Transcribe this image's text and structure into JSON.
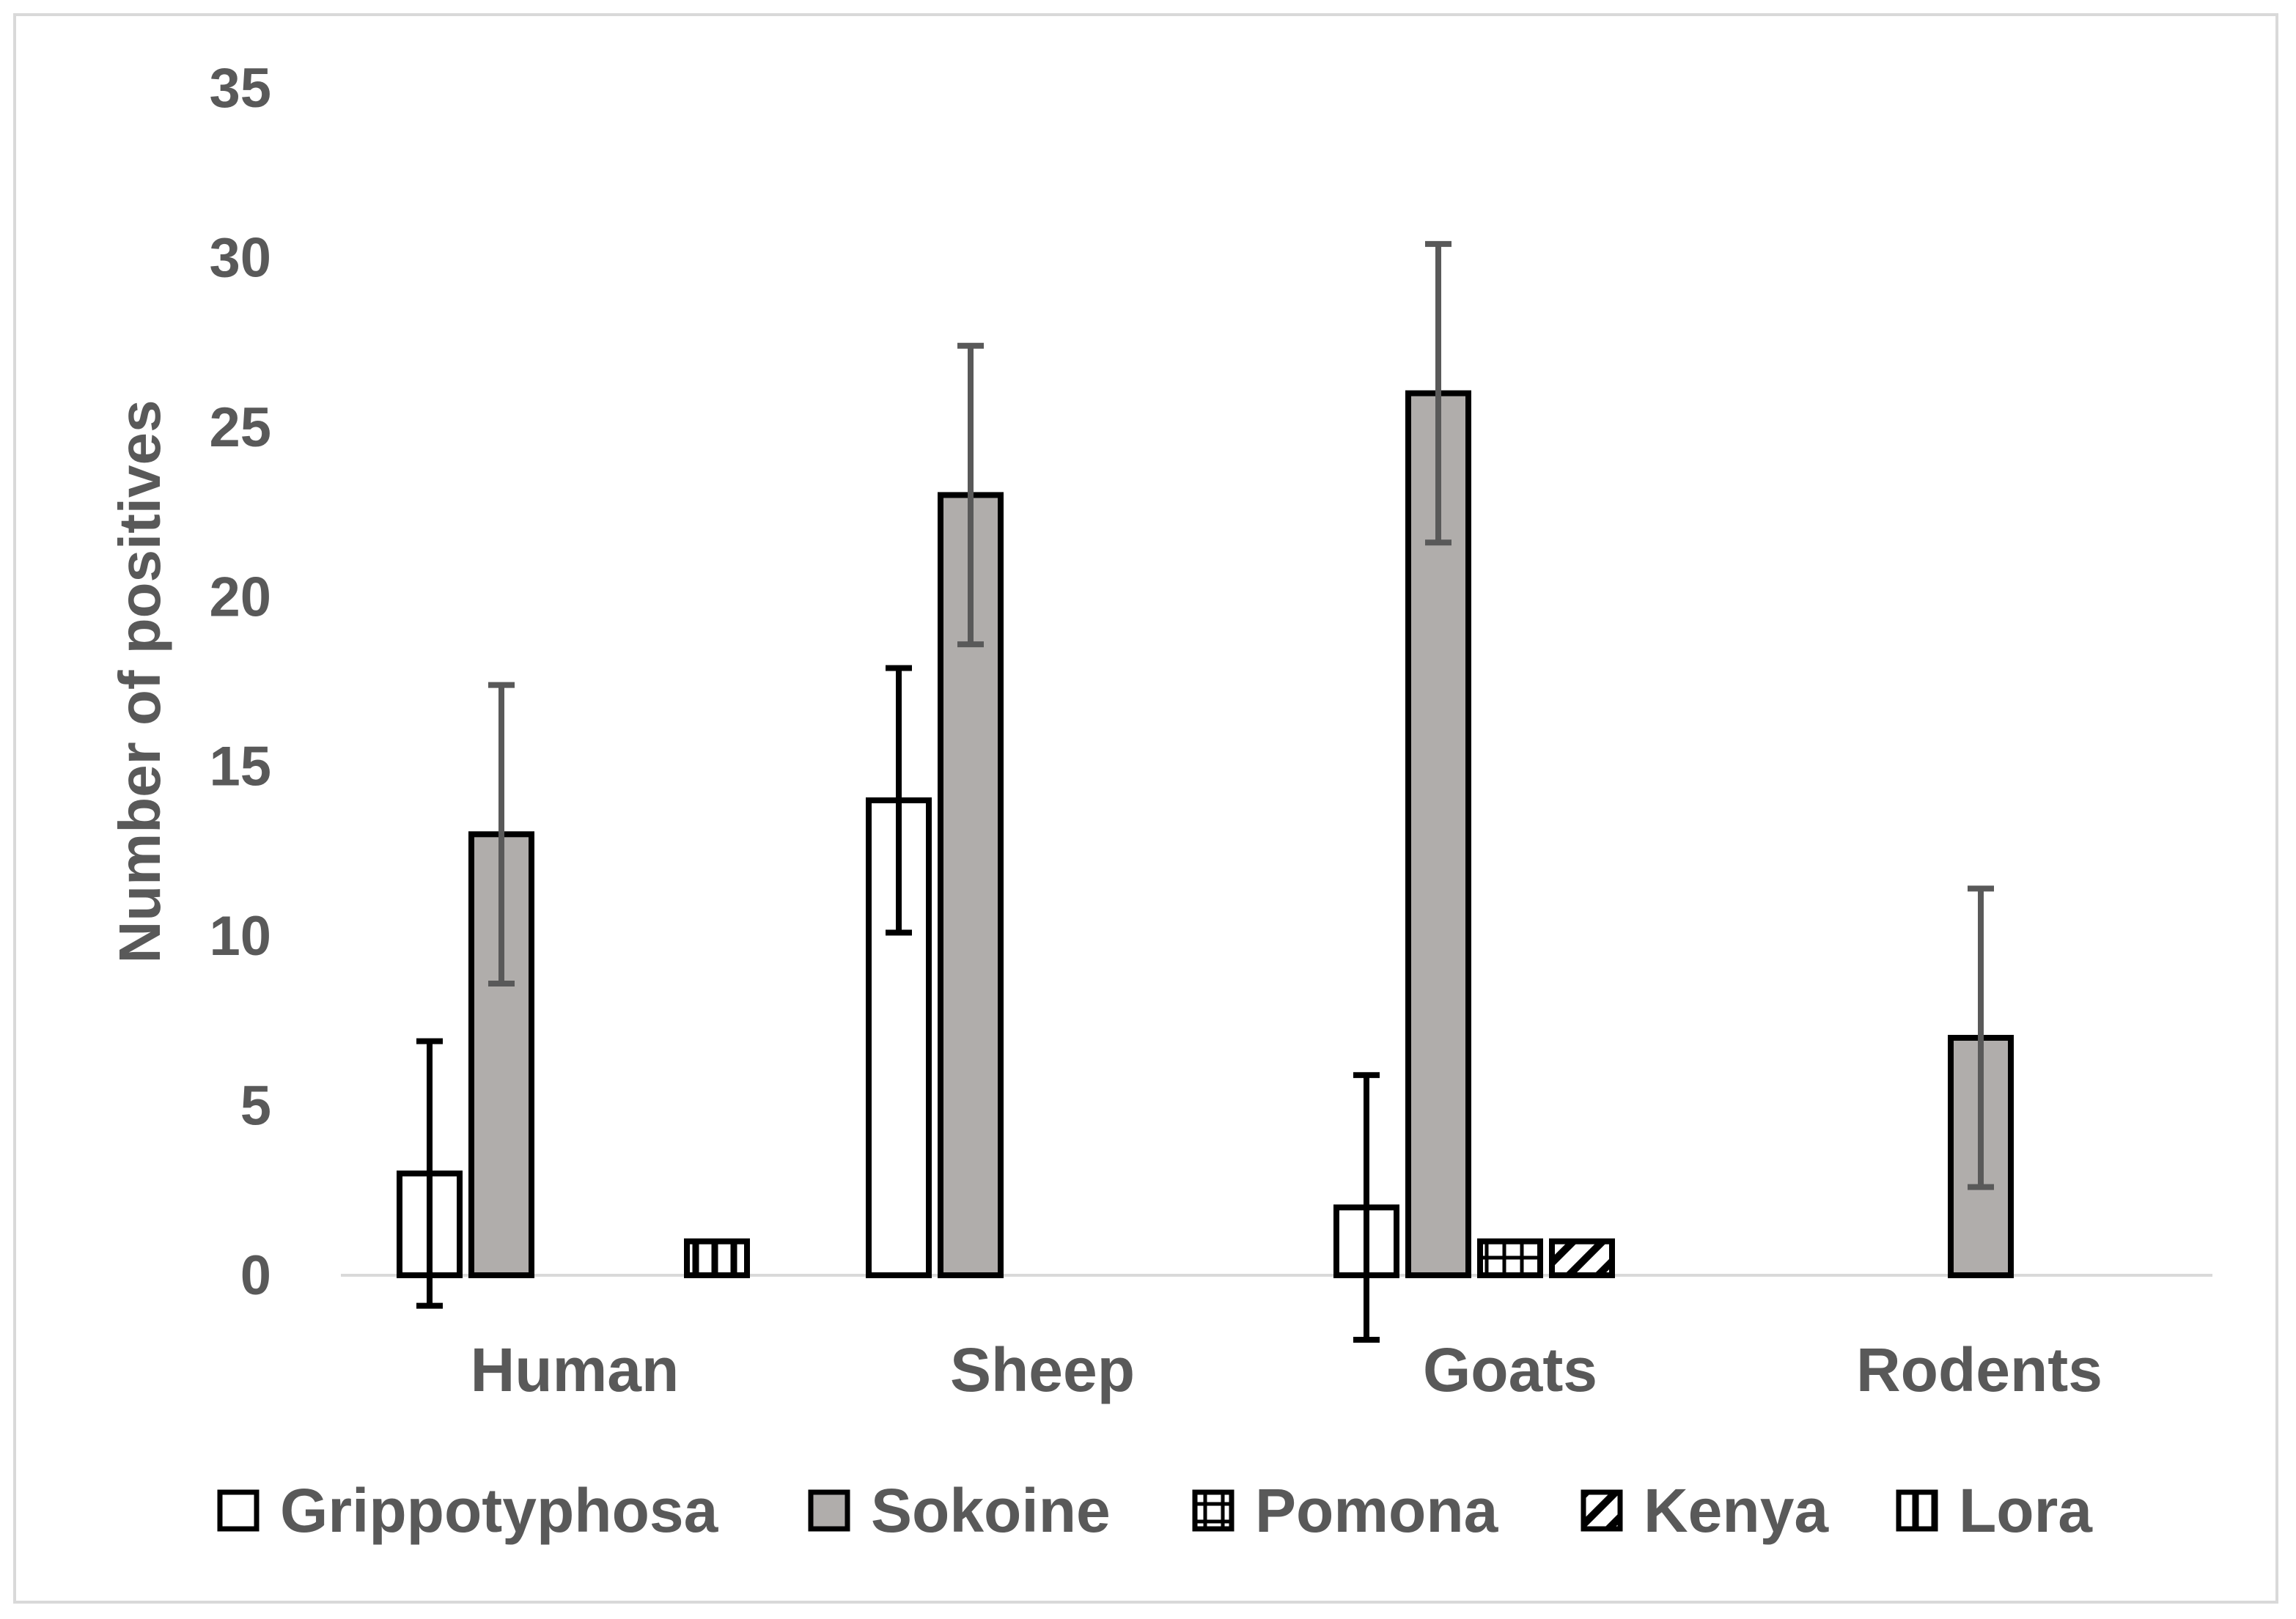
{
  "chart_data": {
    "type": "bar",
    "title": "",
    "xlabel": "",
    "ylabel": "Number of positives",
    "ylim": [
      0,
      35
    ],
    "yticks": [
      0,
      5,
      10,
      15,
      20,
      25,
      30,
      35
    ],
    "categories": [
      "Human",
      "Sheep",
      "Goats",
      "Rodents"
    ],
    "series": [
      {
        "name": "Grippotyphosa",
        "pattern": "empty",
        "fill": "#ffffff",
        "values": [
          3,
          14,
          2,
          0
        ],
        "errors": [
          3.9,
          3.9,
          3.9,
          0
        ],
        "error_color": "#000000"
      },
      {
        "name": "Sokoine",
        "pattern": "solid",
        "fill": "#b0adab",
        "values": [
          13,
          23,
          26,
          7
        ],
        "errors": [
          4.4,
          4.4,
          4.4,
          4.4
        ],
        "error_color": "#595959"
      },
      {
        "name": "Pomona",
        "pattern": "grid",
        "fill": "#ffffff",
        "values": [
          0,
          0,
          1,
          0
        ],
        "errors": [
          0,
          0,
          0,
          0
        ],
        "error_color": "#000000"
      },
      {
        "name": "Kenya",
        "pattern": "diagonal",
        "fill": "#ffffff",
        "values": [
          0,
          0,
          1,
          0
        ],
        "errors": [
          0,
          0,
          0,
          0
        ],
        "error_color": "#000000"
      },
      {
        "name": "Lora",
        "pattern": "vertical",
        "fill": "#ffffff",
        "values": [
          1,
          0,
          0,
          0
        ],
        "errors": [
          0,
          0,
          0,
          0
        ],
        "error_color": "#000000"
      }
    ],
    "legend_position": "bottom",
    "grid": false
  }
}
